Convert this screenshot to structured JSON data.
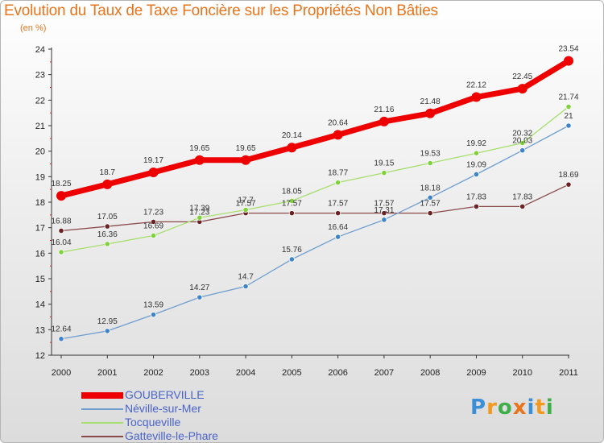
{
  "title": "Evolution du Taux de Taxe Foncière sur les Propriétés Non Bâties",
  "subtitle": "(en %)",
  "logo": {
    "text": "Proxiti",
    "letters": [
      {
        "ch": "P",
        "color": "#3b8fd6"
      },
      {
        "ch": "r",
        "color": "#f39a1e"
      },
      {
        "ch": "o",
        "color": "#3fae49"
      },
      {
        "ch": "x",
        "color": "#e8741c"
      },
      {
        "ch": "i",
        "color": "#3b8fd6"
      },
      {
        "ch": "t",
        "color": "#f39a1e"
      },
      {
        "ch": "i",
        "color": "#3fae49"
      }
    ]
  },
  "chart_data": {
    "type": "line",
    "title": "Evolution du Taux de Taxe Foncière sur les Propriétés Non Bâties",
    "ylabel": "(en %)",
    "xlabel": "",
    "categories": [
      "2000",
      "2001",
      "2002",
      "2003",
      "2004",
      "2005",
      "2006",
      "2007",
      "2008",
      "2009",
      "2010",
      "2011"
    ],
    "ylim": [
      12,
      24
    ],
    "yticks": [
      12,
      13,
      14,
      15,
      16,
      17,
      18,
      19,
      20,
      21,
      22,
      23,
      24
    ],
    "grid": false,
    "legend_position": "bottom-left",
    "series": [
      {
        "name": "GOUBERVILLE",
        "color": "#ee0000",
        "values": [
          18.25,
          18.7,
          19.17,
          19.65,
          19.65,
          20.14,
          20.64,
          21.16,
          21.48,
          22.12,
          22.45,
          23.54
        ],
        "labels": [
          "18.25",
          "18.7",
          "19.17",
          "19.65",
          "19.65",
          "20.14",
          "20.64",
          "21.16",
          "21.48",
          "22.12",
          "22.45",
          "23.54"
        ]
      },
      {
        "name": "Néville-sur-Mer",
        "color": "#6f9ed0",
        "marker": "#3f84c8",
        "values": [
          12.64,
          12.95,
          13.59,
          14.27,
          14.7,
          15.76,
          16.64,
          17.31,
          18.18,
          19.09,
          20.03,
          21
        ],
        "labels": [
          "12.64",
          "12.95",
          "13.59",
          "14.27",
          "14.7",
          "15.76",
          "16.64",
          "17.31",
          "18.18",
          "19.09",
          "20.03",
          "21"
        ]
      },
      {
        "name": "Tocqueville",
        "color": "#a7df6e",
        "marker": "#7ed23a",
        "values": [
          16.04,
          16.36,
          16.69,
          17.39,
          17.7,
          18.05,
          18.77,
          19.15,
          19.53,
          19.92,
          20.32,
          21.74
        ],
        "labels": [
          "16.04",
          "16.36",
          "16.69",
          "17.39",
          "17.7",
          "18.05",
          "18.77",
          "19.15",
          "19.53",
          "19.92",
          "20.32",
          "21.74"
        ]
      },
      {
        "name": "Gatteville-le-Phare",
        "color": "#8b4a4a",
        "marker": "#6b2222",
        "values": [
          16.88,
          17.05,
          17.23,
          17.23,
          17.57,
          17.57,
          17.57,
          17.57,
          17.57,
          17.83,
          17.83,
          18.69
        ],
        "labels": [
          "16.88",
          "17.05",
          "17.23",
          "17.23",
          "17.57",
          "17.57",
          "17.57",
          "17.57",
          "17.57",
          "17.83",
          "17.83",
          "18.69"
        ]
      }
    ]
  }
}
